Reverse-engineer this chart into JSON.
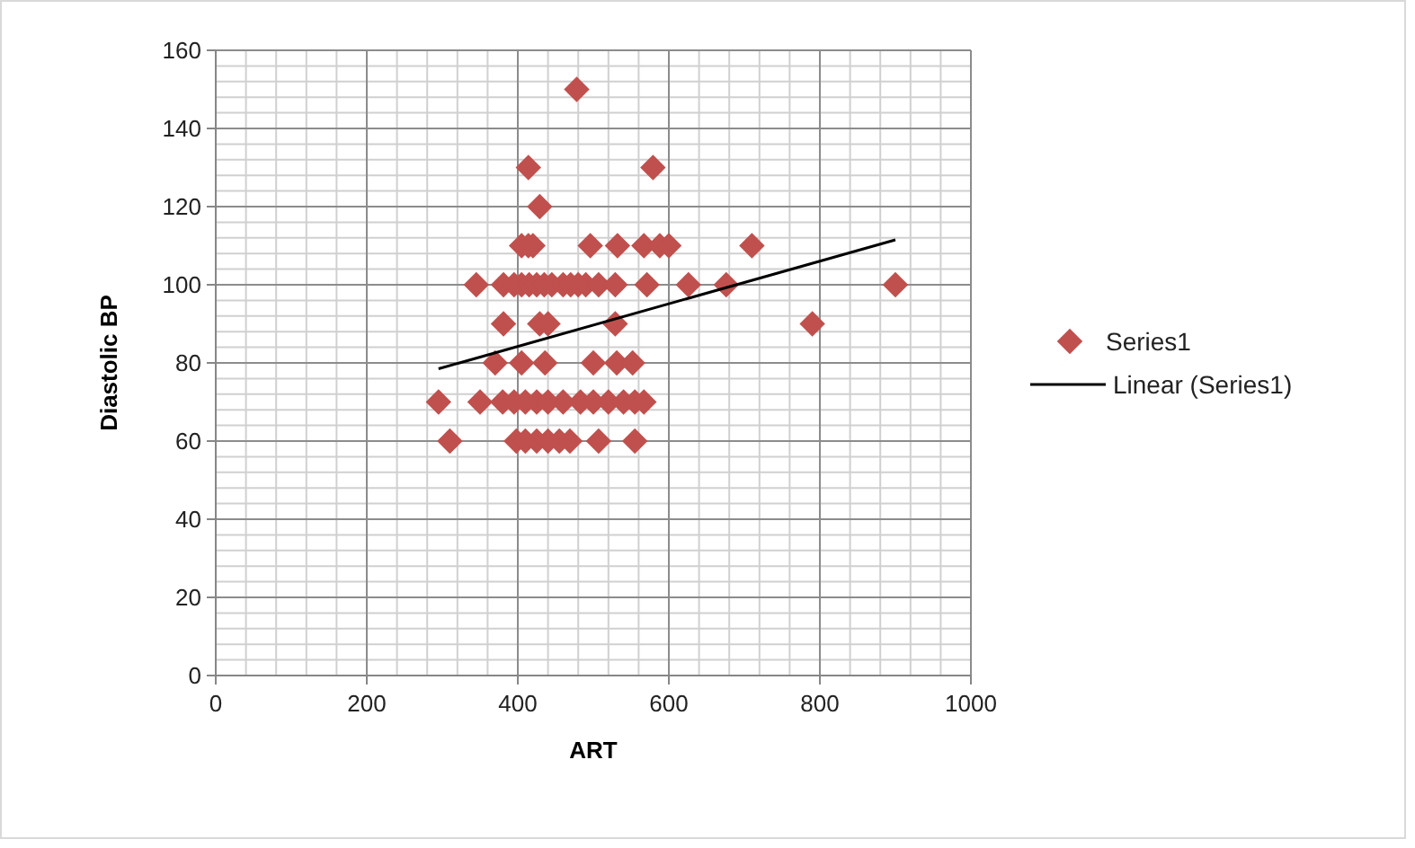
{
  "chart_data": {
    "type": "scatter",
    "xlabel": "ART",
    "ylabel": "Diastolic BP",
    "xlim": [
      0,
      1000
    ],
    "xticks": [
      0,
      200,
      400,
      600,
      800,
      1000
    ],
    "ylim": [
      0,
      160
    ],
    "yticks": [
      0,
      20,
      40,
      60,
      80,
      100,
      120,
      140,
      160
    ],
    "grid": true,
    "legend": "right",
    "marker": "diamond",
    "series": [
      {
        "name": "Series1",
        "color": "#c0504d",
        "x": [
          478,
          414,
          579,
          429,
          405,
          414,
          420,
          496,
          532,
          567,
          588,
          600,
          710,
          345,
          381,
          395,
          405,
          415,
          425,
          435,
          445,
          460,
          470,
          480,
          490,
          507,
          529,
          571,
          626,
          676,
          900,
          381,
          429,
          440,
          529,
          790,
          370,
          405,
          436,
          500,
          531,
          552,
          295,
          350,
          380,
          395,
          410,
          425,
          440,
          460,
          483,
          500,
          520,
          540,
          555,
          567,
          310,
          398,
          410,
          425,
          440,
          455,
          469,
          507,
          555
        ],
        "values": [
          150,
          130,
          130,
          120,
          110,
          110,
          110,
          110,
          110,
          110,
          110,
          110,
          110,
          100,
          100,
          100,
          100,
          100,
          100,
          100,
          100,
          100,
          100,
          100,
          100,
          100,
          100,
          100,
          100,
          100,
          100,
          90,
          90,
          90,
          90,
          90,
          80,
          80,
          80,
          80,
          80,
          80,
          70,
          70,
          70,
          70,
          70,
          70,
          70,
          70,
          70,
          70,
          70,
          70,
          70,
          70,
          60,
          60,
          60,
          60,
          60,
          60,
          60,
          60,
          60
        ]
      },
      {
        "name": "Linear (Series1)",
        "type": "line",
        "color": "#000000",
        "marker": "none",
        "x": [
          295,
          900
        ],
        "values": [
          78.5,
          111.5
        ]
      }
    ]
  }
}
